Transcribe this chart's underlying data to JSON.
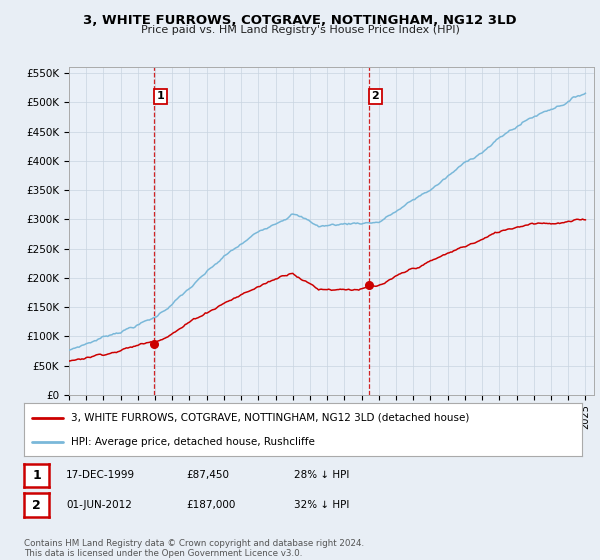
{
  "title": "3, WHITE FURROWS, COTGRAVE, NOTTINGHAM, NG12 3LD",
  "subtitle": "Price paid vs. HM Land Registry's House Price Index (HPI)",
  "legend_line1": "3, WHITE FURROWS, COTGRAVE, NOTTINGHAM, NG12 3LD (detached house)",
  "legend_line2": "HPI: Average price, detached house, Rushcliffe",
  "footnote": "Contains HM Land Registry data © Crown copyright and database right 2024.\nThis data is licensed under the Open Government Licence v3.0.",
  "annotation1_date": "17-DEC-1999",
  "annotation1_price": "£87,450",
  "annotation1_hpi": "28% ↓ HPI",
  "annotation2_date": "01-JUN-2012",
  "annotation2_price": "£187,000",
  "annotation2_hpi": "32% ↓ HPI",
  "sale1_year": 1999.96,
  "sale1_price": 87450,
  "sale2_year": 2012.42,
  "sale2_price": 187000,
  "hpi_color": "#7ab8d9",
  "price_color": "#cc0000",
  "bg_color": "#e8eef5",
  "plot_bg": "#eaf0f8",
  "grid_color": "#c8d4e0",
  "ylim_min": 0,
  "ylim_max": 560000,
  "xlim_min": 1995,
  "xlim_max": 2025.5,
  "yticks": [
    0,
    50000,
    100000,
    150000,
    200000,
    250000,
    300000,
    350000,
    400000,
    450000,
    500000,
    550000
  ],
  "ylabels": [
    "£0",
    "£50K",
    "£100K",
    "£150K",
    "£200K",
    "£250K",
    "£300K",
    "£350K",
    "£400K",
    "£450K",
    "£500K",
    "£550K"
  ],
  "title_fontsize": 9.5,
  "subtitle_fontsize": 8,
  "tick_fontsize": 7.5,
  "legend_fontsize": 7.5,
  "annot_fontsize": 7.5
}
